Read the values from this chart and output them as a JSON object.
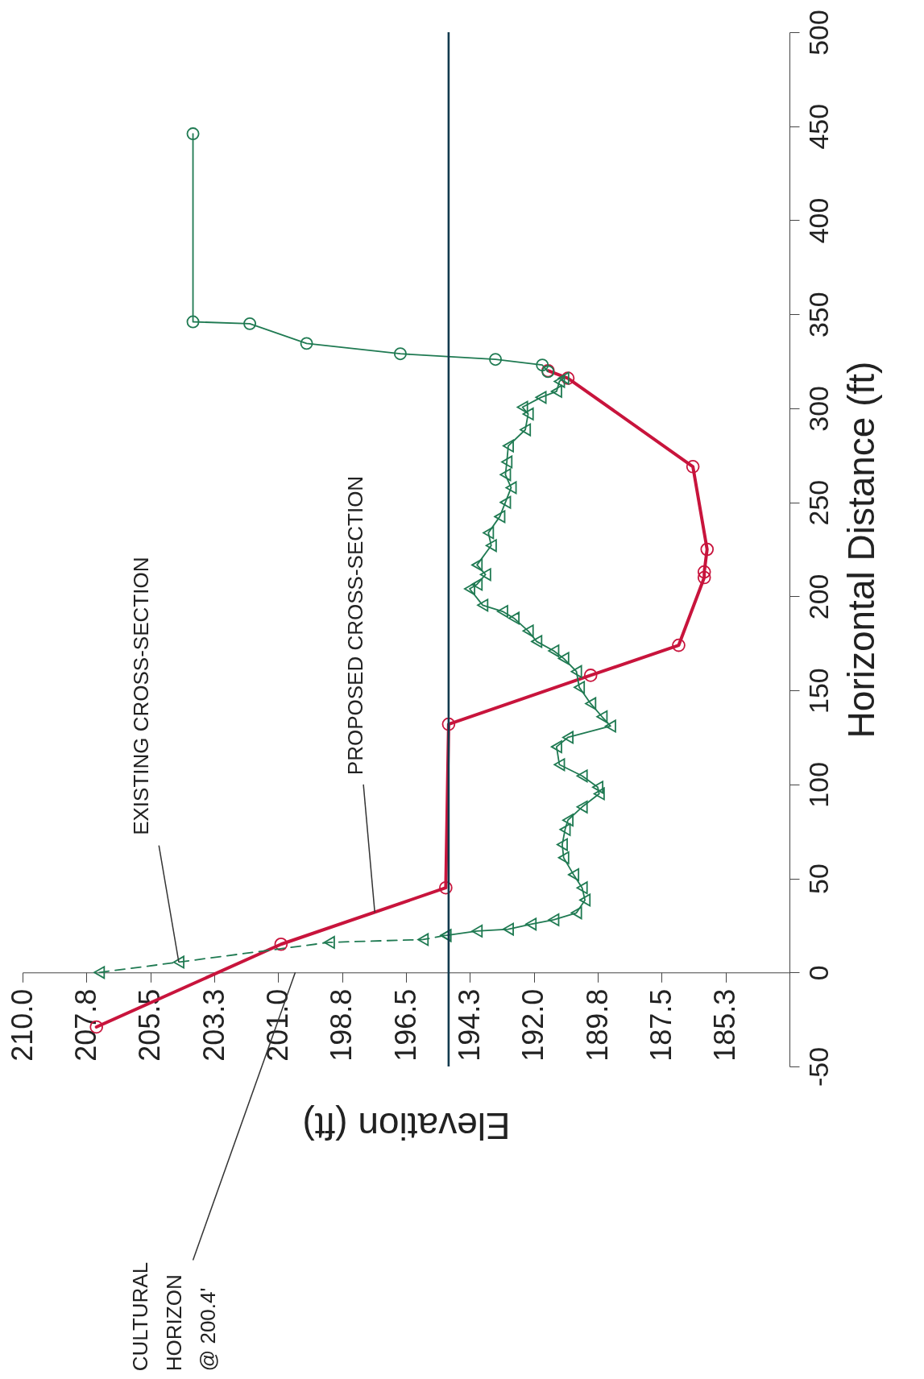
{
  "chart_data": {
    "type": "line",
    "xlabel": "Elevation (ft)",
    "ylabel": "Horizontal Distance (ft)",
    "xlim": [
      210,
      183
    ],
    "xticks": [
      {
        "value": 210,
        "label": "210.0"
      },
      {
        "value": 207.75,
        "label": "207.8"
      },
      {
        "value": 205.5,
        "label": "205.5"
      },
      {
        "value": 203.25,
        "label": "203.3"
      },
      {
        "value": 201,
        "label": "201.0"
      },
      {
        "value": 198.75,
        "label": "198.8"
      },
      {
        "value": 196.5,
        "label": "196.5"
      },
      {
        "value": 194.25,
        "label": "194.3"
      },
      {
        "value": 192,
        "label": "192.0"
      },
      {
        "value": 189.75,
        "label": "189.8"
      },
      {
        "value": 187.5,
        "label": "187.5"
      },
      {
        "value": 185.25,
        "label": "185.3"
      }
    ],
    "ylim": [
      -50,
      500
    ],
    "yticks": [
      -50,
      0,
      50,
      100,
      150,
      200,
      250,
      300,
      350,
      400,
      450,
      500
    ],
    "series": [
      {
        "color": "#c8143c",
        "marker": "circle",
        "line_style": "solid",
        "x": [
          207.4,
          200.9,
          195.1,
          195.0,
          190.0,
          186.9,
          186.0,
          186.0,
          185.9,
          186.4,
          190.8,
          191.5
        ],
        "values": [
          -29,
          15,
          45,
          132,
          158,
          174,
          210,
          213,
          225,
          269,
          316,
          320
        ]
      },
      {
        "color": "#1f7a52",
        "marker": "triangle",
        "line_style": "dashed",
        "x": [
          207.3,
          204.5,
          199.2,
          195.9,
          195.1
        ],
        "values": [
          0,
          5.5,
          16,
          17.5,
          19.7
        ]
      },
      {
        "color": "#1f7a52",
        "marker": "triangle",
        "line_style": "solid",
        "x": [
          195.1,
          194.0,
          192.9,
          192.1,
          191.3,
          190.5,
          190.2,
          190.3,
          190.6,
          190.95,
          191.0,
          190.9,
          190.8,
          190.3,
          189.7,
          189.75,
          190.3,
          191.1,
          191.2,
          190.8,
          189.3,
          189.6,
          190.0,
          190.4,
          190.5,
          190.95,
          191.3,
          191.9,
          192.2,
          192.7,
          193.1,
          193.8,
          194.26,
          194.0,
          193.7,
          194.0,
          193.5,
          193.6,
          193.2,
          193.0,
          192.8,
          193.0,
          192.95,
          192.9,
          192.3,
          192.2,
          192.4,
          191.75,
          191.2,
          191.1,
          190.95
        ],
        "values": [
          19.7,
          22,
          23,
          25.7,
          28,
          31.7,
          38.5,
          45,
          52,
          61,
          68,
          76,
          81,
          88,
          95,
          98.5,
          104.5,
          110.5,
          120,
          125,
          131,
          136,
          143,
          151.6,
          160,
          167,
          171,
          176,
          181.6,
          188.4,
          192,
          195.3,
          204,
          206.4,
          211.6,
          216.7,
          227,
          233.8,
          242.4,
          250,
          257.8,
          264.7,
          271.5,
          280,
          288.6,
          297,
          300.6,
          305.8,
          309,
          314.3,
          316
        ]
      },
      {
        "color": "#1f7a52",
        "marker": "circle",
        "line_style": "solid",
        "x": [
          191.5,
          191.7,
          193.35,
          196.7,
          200.0,
          202.0,
          204.0,
          204.0
        ],
        "values": [
          319.5,
          323,
          326,
          329,
          334.5,
          345,
          346,
          446
        ]
      }
    ],
    "ref_lines": [
      {
        "axis": "x",
        "value": 195.0,
        "color": "#123a4e"
      }
    ],
    "annotations": [
      {
        "text": "EXISTING CROSS-SECTION",
        "x": 204.5,
        "y": 5.5
      },
      {
        "text": "PROPOSED CROSS-SECTION",
        "x": 197.6,
        "y": 32
      },
      "CULTURAL\nHORIZON\n@ 200.4'"
    ],
    "grid": false
  }
}
